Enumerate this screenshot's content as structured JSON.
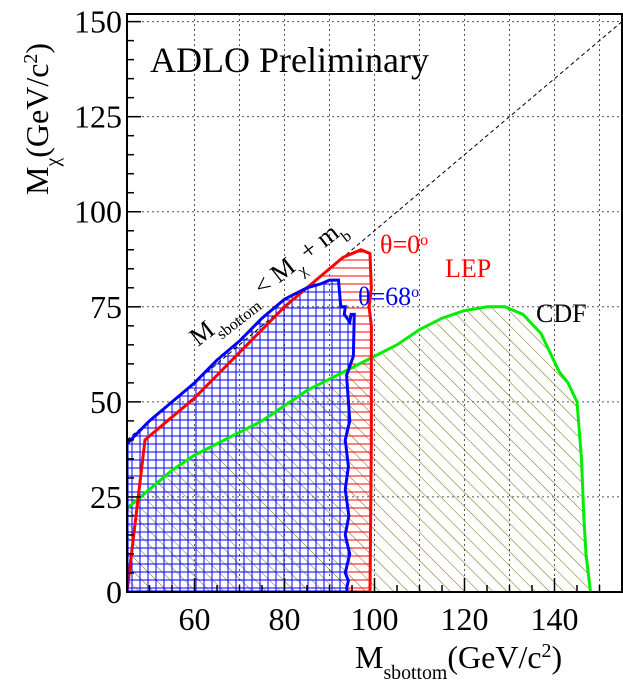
{
  "chart_data": {
    "type": "area",
    "title": "ADLO Preliminary",
    "xlabel": {
      "main": "M",
      "sub": "sbottom",
      "unit": "(GeV/c",
      "sup": "2",
      "close": ")"
    },
    "ylabel": {
      "main": "M",
      "sub": "χ",
      "unit": "(GeV/c",
      "sup": "2",
      "close": ")"
    },
    "xlim": [
      45,
      155
    ],
    "ylim": [
      0,
      152
    ],
    "x_ticks": [
      60,
      80,
      100,
      120,
      140
    ],
    "y_ticks": [
      0,
      25,
      50,
      75,
      100,
      125,
      150
    ],
    "grid": true,
    "annotations": {
      "kinematic_prefix": "M",
      "kinematic_prefix_sub": "sbottom",
      "kinematic_rel": " < M",
      "kinematic_chi_sub": "χ",
      "kinematic_plus": " + m",
      "kinematic_b_sub": "b",
      "theta0": "θ=0",
      "theta0_sup": "o",
      "theta68": "θ=68",
      "theta68_sup": "o",
      "lep": "LEP",
      "cdf": "CDF"
    },
    "colors": {
      "lep_theta0": "#ff0000",
      "lep_theta68": "#0000ff",
      "cdf": "#00ee00",
      "cdf_hatch": "#7a6a10",
      "text": "#000000"
    },
    "series": [
      {
        "name": "θ=0",
        "x": [
          45,
          49,
          55,
          60,
          65,
          70,
          75,
          80,
          85,
          90,
          93,
          95,
          97,
          99,
          99.3,
          98.8,
          99.3,
          99.3,
          99
        ],
        "y": [
          0,
          40,
          46,
          51,
          57,
          63,
          69,
          75,
          80,
          85,
          88,
          89,
          90,
          89,
          80,
          75,
          70,
          40,
          0
        ]
      },
      {
        "name": "θ=68",
        "x": [
          45,
          45,
          50,
          55,
          60,
          65,
          70,
          75,
          80,
          85,
          88,
          90,
          92,
          92.5,
          93.5,
          93.3,
          94.5,
          94.8,
          95.5,
          95.3,
          93.8,
          94.5,
          93.5,
          94.2,
          93.5,
          94.3,
          93.5,
          94.5,
          93.5,
          94.2,
          93.8,
          94
        ],
        "y": [
          0,
          39,
          45,
          50,
          55,
          61,
          66,
          72,
          77,
          80,
          81,
          82,
          82,
          75,
          75,
          73,
          71,
          73,
          73,
          62,
          57,
          45,
          40,
          33,
          27,
          20,
          15,
          10,
          5,
          3,
          1,
          0
        ]
      },
      {
        "name": "CDF",
        "x": [
          45,
          50,
          55,
          60,
          65,
          70,
          75,
          80,
          85,
          90,
          95,
          100,
          105,
          110,
          115,
          120,
          125,
          129,
          133,
          137,
          139,
          141,
          143,
          145,
          146,
          146.5,
          147,
          148
        ],
        "y": [
          22,
          27,
          32,
          36,
          39,
          42,
          45,
          49,
          53,
          56,
          59,
          62,
          65,
          69,
          72,
          74,
          75,
          75,
          73,
          68,
          63,
          58,
          55,
          50,
          35,
          20,
          10,
          0
        ]
      }
    ]
  }
}
